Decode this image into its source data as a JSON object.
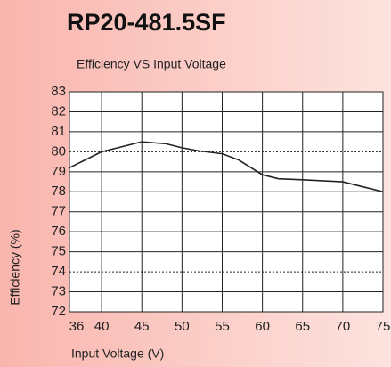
{
  "chart_data": {
    "type": "line",
    "title": "RP20-481.5SF",
    "subtitle": "Efficiency VS Input Voltage",
    "x_label": "Input Voltage (V)",
    "y_label": "Efficiency (%)",
    "x": [
      36,
      40,
      45,
      48,
      50,
      52,
      55,
      57,
      59,
      60,
      62,
      65,
      70,
      72,
      75
    ],
    "series": [
      {
        "name": "Efficiency",
        "color": "#222222",
        "values": [
          79.2,
          80.0,
          80.5,
          80.4,
          80.2,
          80.05,
          79.9,
          79.6,
          79.1,
          78.85,
          78.65,
          78.6,
          78.5,
          78.3,
          78.0
        ]
      }
    ],
    "xlim": [
      36,
      75
    ],
    "xticks": [
      36,
      40,
      45,
      50,
      55,
      60,
      65,
      70,
      75
    ],
    "ylim": [
      72,
      83
    ],
    "yticks": [
      72,
      73,
      74,
      75,
      76,
      77,
      78,
      79,
      80,
      81,
      82,
      83
    ],
    "grid": true,
    "dotted_grid": [
      74,
      80
    ]
  }
}
